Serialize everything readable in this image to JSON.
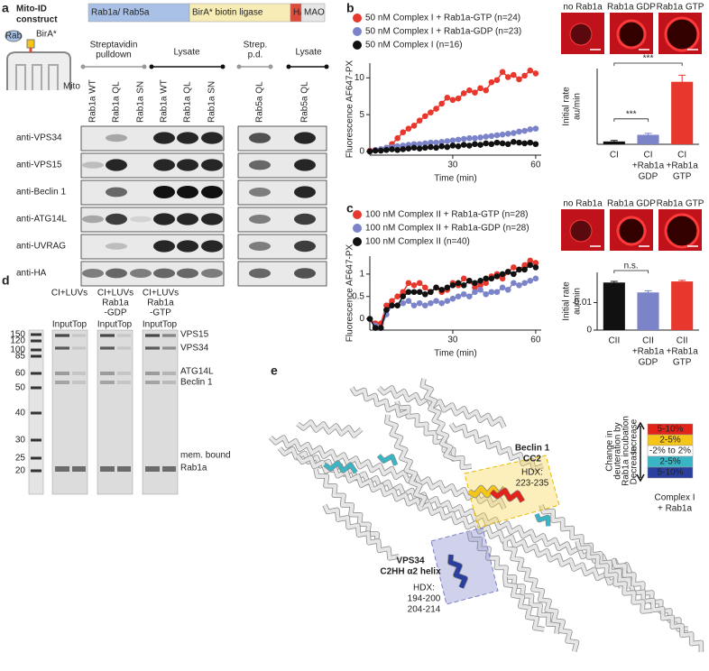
{
  "panel_labels": [
    "a",
    "b",
    "c",
    "d",
    "e"
  ],
  "panel_a": {
    "construct_title": [
      "Mito-ID",
      "construct"
    ],
    "construct_segments": [
      "Rab1a/ Rab5a",
      "BirA* biotin ligase",
      "HA",
      "MAO"
    ],
    "icon_labels": [
      "Rab",
      "BirA*",
      "Mito"
    ],
    "groups": [
      [
        "Streptavidin",
        "pulldown"
      ],
      [
        "Lysate"
      ],
      [
        "Strep.",
        "p.d."
      ],
      [
        "Lysate"
      ]
    ],
    "lanes": [
      "Rab1a WT",
      "Rab1a QL",
      "Rab1a SN",
      "Rab1a WT",
      "Rab1a QL",
      "Rab1a SN",
      "Rab5a QL",
      "Rab5a QL"
    ],
    "antibodies": [
      "anti-VPS34",
      "anti-VPS15",
      "anti-Beclin 1",
      "anti-ATG14L",
      "anti-UVRAG",
      "anti-HA"
    ]
  },
  "chart_data": [
    {
      "type": "line",
      "xlabel": "Time (min)",
      "ylabel": "Fluorescence AF647-PX",
      "x": [
        0,
        2,
        4,
        6,
        8,
        10,
        12,
        14,
        16,
        18,
        20,
        22,
        24,
        26,
        28,
        30,
        32,
        34,
        36,
        38,
        40,
        42,
        44,
        46,
        48,
        50,
        52,
        54,
        56,
        58,
        60
      ],
      "xlim": [
        0,
        62
      ],
      "xticks": [
        30,
        60
      ],
      "ylim": [
        -0.5,
        12
      ],
      "yticks": [
        0,
        5,
        10
      ],
      "series": [
        {
          "name": "50 nM Complex I + Rab1a-GTP (n=24)",
          "color": "#e8372c",
          "values": [
            0.1,
            0.2,
            0.3,
            0.5,
            1.0,
            1.8,
            2.6,
            3.1,
            3.5,
            4.2,
            4.8,
            5.3,
            5.8,
            6.5,
            7.3,
            7.0,
            7.2,
            7.9,
            8.3,
            8.0,
            8.6,
            8.3,
            9.4,
            9.7,
            10.8,
            10.1,
            10.4,
            9.8,
            10.3,
            11.0,
            10.6
          ]
        },
        {
          "name": "50 nM Complex I + Rab1a-GDP (n=23)",
          "color": "#7b83c9",
          "values": [
            0,
            0.2,
            0.3,
            0.5,
            0.6,
            0.7,
            0.8,
            0.9,
            1.0,
            1.0,
            1.1,
            1.2,
            1.2,
            1.3,
            1.4,
            1.5,
            1.6,
            1.7,
            1.8,
            1.8,
            1.9,
            2.0,
            2.1,
            2.2,
            2.3,
            2.4,
            2.5,
            2.7,
            2.8,
            3.0,
            3.1
          ]
        },
        {
          "name": "50 nM Complex I (n=16)",
          "color": "#111111",
          "values": [
            0,
            0.1,
            0.1,
            0.2,
            0.3,
            0.2,
            0.3,
            0.4,
            0.5,
            0.4,
            0.5,
            0.6,
            0.5,
            0.7,
            0.6,
            0.8,
            0.7,
            0.9,
            0.8,
            1.0,
            0.9,
            1.1,
            1.0,
            1.2,
            1.1,
            1.0,
            1.3,
            1.2,
            1.1,
            1.2,
            1.0
          ]
        }
      ]
    },
    {
      "type": "bar",
      "ylabel": [
        "Initial rate",
        "au/min"
      ],
      "categories": [
        [
          "CI"
        ],
        [
          "CI",
          "+Rab1a",
          "GDP"
        ],
        [
          "CI",
          "+Rab1a",
          "GTP"
        ]
      ],
      "values": [
        0.015,
        0.05,
        0.33
      ],
      "errors": [
        0.005,
        0.008,
        0.035
      ],
      "colors": [
        "#111111",
        "#7b83c9",
        "#e8372c"
      ],
      "ylim": [
        0,
        0.4
      ],
      "significance": [
        "***",
        "***"
      ]
    },
    {
      "type": "line",
      "xlabel": "Time (min)",
      "ylabel": "Fluorescence AF647-PX",
      "x": [
        0,
        2,
        4,
        6,
        8,
        10,
        12,
        14,
        16,
        18,
        20,
        22,
        24,
        26,
        28,
        30,
        32,
        34,
        36,
        38,
        40,
        42,
        44,
        46,
        48,
        50,
        52,
        54,
        56,
        58,
        60
      ],
      "xlim": [
        0,
        62
      ],
      "xticks": [
        30,
        60
      ],
      "ylim": [
        -0.25,
        1.4
      ],
      "yticks": [
        0,
        0.5,
        1
      ],
      "series": [
        {
          "name": "100 nM Complex II + Rab1a-GTP (n=28)",
          "color": "#e8372c",
          "values": [
            0,
            -0.1,
            -0.1,
            0.3,
            0.4,
            0.5,
            0.6,
            0.8,
            0.75,
            0.8,
            0.7,
            0.6,
            0.7,
            0.6,
            0.65,
            0.8,
            0.75,
            0.9,
            0.85,
            0.7,
            0.75,
            0.8,
            0.95,
            1.0,
            0.9,
            1.05,
            1.15,
            1.1,
            1.2,
            1.3,
            1.25
          ]
        },
        {
          "name": "100 nM Complex II + Rab1a-GDP (n=28)",
          "color": "#7b83c9",
          "values": [
            0,
            -0.15,
            -0.2,
            0.1,
            0.3,
            0.3,
            0.35,
            0.4,
            0.3,
            0.35,
            0.3,
            0.35,
            0.4,
            0.35,
            0.4,
            0.45,
            0.5,
            0.55,
            0.5,
            0.6,
            0.65,
            0.55,
            0.6,
            0.6,
            0.7,
            0.65,
            0.8,
            0.75,
            0.8,
            0.85,
            0.9
          ]
        },
        {
          "name": "100 nM Complex II (n=40)",
          "color": "#111111",
          "values": [
            0,
            -0.2,
            -0.2,
            0.2,
            0.3,
            0.3,
            0.5,
            0.6,
            0.6,
            0.6,
            0.55,
            0.6,
            0.7,
            0.65,
            0.7,
            0.75,
            0.8,
            0.75,
            0.85,
            0.8,
            0.85,
            0.9,
            0.9,
            0.95,
            1.0,
            1.05,
            1.0,
            1.1,
            1.1,
            1.2,
            1.15
          ]
        }
      ]
    },
    {
      "type": "bar",
      "ylabel": [
        "Initial rate",
        "au/min"
      ],
      "categories": [
        [
          "CII"
        ],
        [
          "CII",
          "+Rab1a",
          "GDP"
        ],
        [
          "CII",
          "+Rab1a",
          "GTP"
        ]
      ],
      "values": [
        0.0173,
        0.0137,
        0.0177
      ],
      "errors": [
        0.0004,
        0.0006,
        0.0004
      ],
      "colors": [
        "#111111",
        "#7b83c9",
        "#e8372c"
      ],
      "ylim": [
        0,
        0.021
      ],
      "yticks": [
        0,
        0.01
      ],
      "significance": [
        "n.s."
      ]
    }
  ],
  "micrographs": [
    {
      "labels": [
        "no Rab1a",
        "Rab1a GDP",
        "Rab1a GTP"
      ]
    },
    {
      "labels": [
        "no Rab1a",
        "Rab1a GDP",
        "Rab1a GTP"
      ]
    }
  ],
  "panel_d": {
    "conditions": [
      [
        "CI+LUVs"
      ],
      [
        "CI+LUVs",
        "Rab1a",
        "-GDP"
      ],
      [
        "CI+LUVs",
        "Rab1a",
        "-GTP"
      ]
    ],
    "lanes": [
      "Input",
      "Top"
    ],
    "markers": [
      150,
      120,
      100,
      85,
      60,
      50,
      40,
      30,
      25,
      20
    ],
    "bands": [
      "VPS15",
      "VPS34",
      "ATG14L",
      "Beclin 1",
      "mem. bound",
      "Rab1a"
    ]
  },
  "panel_e": {
    "beclin_label": [
      "Beclin 1",
      "CC2"
    ],
    "beclin_hdx": [
      "HDX:",
      "223-235"
    ],
    "vps34_label": [
      "VPS34",
      "C2HH α2 helix"
    ],
    "vps34_hdx": [
      "HDX:",
      "194-200",
      "204-214"
    ],
    "key": [
      "5-10%",
      "2-5%",
      "-2% to 2%",
      "2-5%",
      "5-10%"
    ],
    "key_colors": [
      "#e2231a",
      "#f5c518",
      "#ffffff",
      "#3ab5c6",
      "#2b3f9e"
    ],
    "key_title": [
      "Change in",
      "deuteration by",
      "Rab1a incubation"
    ],
    "increase": "Increase",
    "decrease": "Decrease",
    "complex": [
      "Complex I",
      "+ Rab1a"
    ]
  }
}
